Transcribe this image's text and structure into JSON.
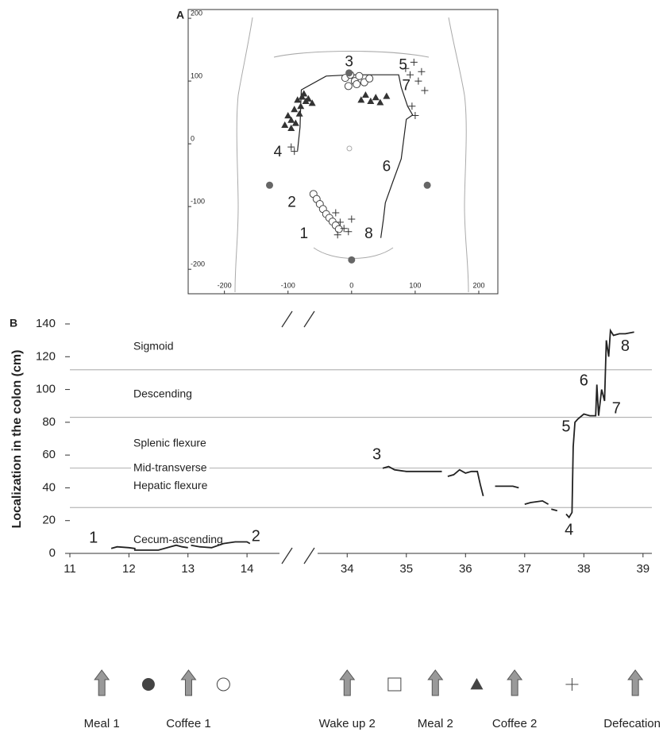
{
  "chart_data": [
    {
      "type": "scatter",
      "panel": "A",
      "xlim": [
        -257,
        230
      ],
      "ylim": [
        -239,
        214
      ],
      "xticks": [
        -200,
        -100,
        0,
        100,
        200
      ],
      "yticks": [
        -200,
        -100,
        0,
        100,
        200
      ],
      "series": [
        {
          "marker": "line",
          "color": "#222222",
          "x": [
            46,
            50,
            53,
            65,
            78,
            86,
            96,
            88,
            78,
            74,
            40,
            0,
            -40,
            -79,
            -80,
            -81,
            -85
          ],
          "y": [
            -150,
            -120,
            -94,
            -60,
            -24,
            39,
            46,
            60,
            90,
            110,
            110,
            110,
            108,
            86,
            60,
            27,
            -11
          ]
        },
        {
          "marker": "filled-triangle",
          "color": "#333333",
          "x": [
            -105,
            -100,
            -95,
            -90,
            -85,
            -80,
            -78,
            -72,
            -68,
            -62,
            -95,
            -88,
            -82,
            -75,
            15,
            22,
            30,
            38,
            45,
            55
          ],
          "y": [
            30,
            45,
            38,
            55,
            70,
            60,
            75,
            68,
            72,
            65,
            25,
            33,
            48,
            80,
            70,
            78,
            68,
            74,
            66,
            76
          ]
        },
        {
          "marker": "open-circle",
          "color": "#444444",
          "x": [
            -10,
            -2,
            5,
            12,
            20,
            28,
            -5,
            8,
            -60,
            -55,
            -50,
            -45,
            -40,
            -35,
            -30,
            -25,
            -20
          ],
          "y": [
            105,
            110,
            100,
            108,
            98,
            104,
            92,
            95,
            -80,
            -88,
            -96,
            -104,
            -112,
            -118,
            -124,
            -130,
            -136
          ]
        },
        {
          "marker": "plus",
          "color": "#333333",
          "x": [
            85,
            92,
            98,
            105,
            110,
            115,
            95,
            100,
            -25,
            -18,
            -12,
            -5,
            0,
            -22,
            -95,
            -90
          ],
          "y": [
            120,
            110,
            130,
            100,
            115,
            85,
            60,
            45,
            -110,
            -125,
            -135,
            -140,
            -120,
            -145,
            -5,
            -12
          ]
        },
        {
          "marker": "filled-circle",
          "color": "#666666",
          "x": [
            -4,
            -129,
            119,
            0
          ],
          "y": [
            113,
            -66,
            -66,
            -185
          ]
        }
      ],
      "annotations": [
        {
          "text": "1",
          "x": -75,
          "y": -144
        },
        {
          "text": "2",
          "x": -94,
          "y": -94
        },
        {
          "text": "3",
          "x": -4,
          "y": 130
        },
        {
          "text": "4",
          "x": -116,
          "y": -14
        },
        {
          "text": "5",
          "x": 81,
          "y": 125
        },
        {
          "text": "6",
          "x": 55,
          "y": -37
        },
        {
          "text": "7",
          "x": 86,
          "y": 92
        },
        {
          "text": "8",
          "x": 27,
          "y": -144
        }
      ]
    },
    {
      "type": "line",
      "panel": "B",
      "y_label": "Localization in the colon (cm)",
      "ylim": [
        0,
        140
      ],
      "yticks": [
        0,
        20,
        40,
        60,
        80,
        100,
        120,
        140
      ],
      "x_segments": [
        {
          "xlim": [
            11,
            14.55
          ],
          "xticks": [
            11,
            12,
            13,
            14
          ]
        },
        {
          "xlim": [
            33.5,
            39.15
          ],
          "xticks": [
            34,
            35,
            36,
            37,
            38,
            39
          ]
        }
      ],
      "boundaries": [
        28,
        52,
        83,
        112
      ],
      "regions": [
        {
          "label": "Sigmoid",
          "y": 126
        },
        {
          "label": "Descending",
          "y": 97
        },
        {
          "label": "Splenic flexure",
          "y": 67
        },
        {
          "label": "Mid-transverse",
          "y": 52
        },
        {
          "label": "Hepatic flexure",
          "y": 41
        },
        {
          "label": "Cecum-ascending",
          "y": 8
        }
      ],
      "series": [
        {
          "color": "#222222",
          "x": [
            11.7,
            11.8,
            12.0,
            12.1,
            12.1,
            12.5,
            12.7,
            12.8,
            12.9,
            13.0,
            null,
            13.05,
            13.2,
            13.4,
            13.6,
            13.8,
            14.0,
            14.05,
            null,
            34.6,
            34.7,
            34.8,
            35.0,
            35.3,
            35.6,
            null,
            35.7,
            35.8,
            35.9,
            36.0,
            36.1,
            36.2,
            36.25,
            36.3,
            null,
            36.5,
            36.6,
            36.8,
            36.9,
            null,
            37.0,
            37.1,
            37.3,
            37.4,
            null,
            37.45,
            37.55,
            null,
            37.7,
            37.75,
            37.8,
            37.82,
            37.85,
            37.9,
            38.0,
            38.1,
            38.2,
            38.22,
            38.25,
            38.3,
            38.35,
            38.38,
            38.42,
            38.45,
            38.5,
            38.6,
            38.7,
            38.85
          ],
          "y": [
            3,
            4,
            3.5,
            3,
            2,
            2,
            4,
            5,
            4,
            3.5,
            null,
            5,
            4,
            3.5,
            6,
            7,
            7,
            6,
            null,
            52,
            53,
            51,
            50,
            50,
            50,
            null,
            47,
            48,
            51,
            49,
            50,
            50,
            42,
            35,
            null,
            41,
            41,
            41,
            40,
            null,
            30,
            31,
            32,
            30,
            null,
            27,
            26,
            null,
            24,
            22,
            25,
            65,
            80,
            82,
            85,
            84,
            84,
            103,
            84,
            100,
            93,
            130,
            120,
            136,
            133,
            134,
            134,
            135
          ]
        }
      ],
      "annotations": [
        {
          "text": "1",
          "x": 11.4,
          "y": 9
        },
        {
          "text": "2",
          "x": 14.15,
          "y": 10
        },
        {
          "text": "3",
          "x": 34.5,
          "y": 60
        },
        {
          "text": "4",
          "x": 37.75,
          "y": 14
        },
        {
          "text": "5",
          "x": 37.7,
          "y": 77
        },
        {
          "text": "6",
          "x": 38.0,
          "y": 105
        },
        {
          "text": "7",
          "x": 38.55,
          "y": 88
        },
        {
          "text": "8",
          "x": 38.7,
          "y": 126
        }
      ],
      "events": [
        {
          "label": "Meal 1",
          "x": 11.54
        },
        {
          "label": "Coffee 1",
          "x": 13.01
        },
        {
          "label": "Wake up 2",
          "x": 34.0
        },
        {
          "label": "Meal 2",
          "x": 35.49
        },
        {
          "label": "Coffee 2",
          "x": 36.83
        },
        {
          "label": "Defecation",
          "x": 38.87
        }
      ],
      "symbols": [
        {
          "marker": "filled-circle",
          "x": 12.33
        },
        {
          "marker": "open-circle",
          "x": 13.6
        },
        {
          "marker": "open-square",
          "x": 34.8
        },
        {
          "marker": "filled-triangle",
          "x": 36.19
        },
        {
          "marker": "plus",
          "x": 37.8
        }
      ]
    }
  ]
}
